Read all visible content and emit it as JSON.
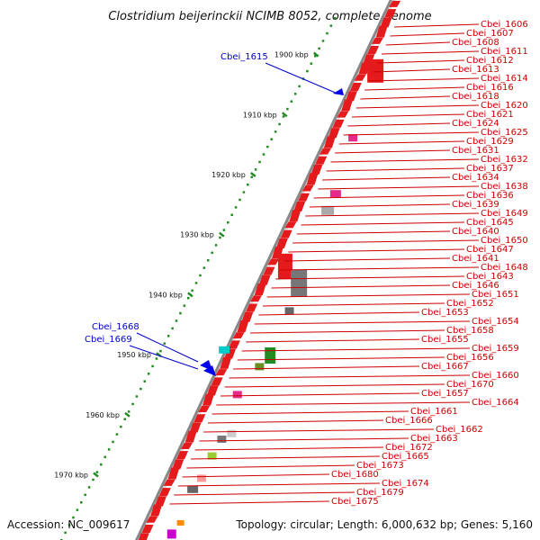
{
  "title": "Clostridium beijerinckii NCIMB 8052, complete genome",
  "footer": {
    "accession": "Accession: NC_009617",
    "topology": "Topology: circular; Length: 6,000,632 bp; Genes: 5,160"
  },
  "colors": {
    "forward_gene": "#e41a1c",
    "reverse_gene": "#0000ee",
    "ruler_major": "#228b22",
    "ruler_minor": "#228b22",
    "backbone": "#888888",
    "label_forward": "#cc0000",
    "label_reverse": "#0000cc"
  },
  "ruler_ticks": [
    {
      "label": "1900 kbp"
    },
    {
      "label": "1910 kbp"
    },
    {
      "label": "1920 kbp"
    },
    {
      "label": "1930 kbp"
    },
    {
      "label": "1940 kbp"
    },
    {
      "label": "1950 kbp"
    },
    {
      "label": "1960 kbp"
    },
    {
      "label": "1970 kbp"
    }
  ],
  "reverse_labels": [
    {
      "text": "Cbei_1615"
    },
    {
      "text": "Cbei_1668"
    },
    {
      "text": "Cbei_1669"
    }
  ],
  "forward_labels": [
    {
      "text": "Cbei_1606"
    },
    {
      "text": "Cbei_1607"
    },
    {
      "text": "Cbei_1608"
    },
    {
      "text": "Cbei_1611"
    },
    {
      "text": "Cbei_1612"
    },
    {
      "text": "Cbei_1613"
    },
    {
      "text": "Cbei_1614"
    },
    {
      "text": "Cbei_1616"
    },
    {
      "text": "Cbei_1618"
    },
    {
      "text": "Cbei_1620"
    },
    {
      "text": "Cbei_1621"
    },
    {
      "text": "Cbei_1624"
    },
    {
      "text": "Cbei_1625"
    },
    {
      "text": "Cbei_1629"
    },
    {
      "text": "Cbei_1631"
    },
    {
      "text": "Cbei_1632"
    },
    {
      "text": "Cbei_1637"
    },
    {
      "text": "Cbei_1634"
    },
    {
      "text": "Cbei_1638"
    },
    {
      "text": "Cbei_1636"
    },
    {
      "text": "Cbei_1639"
    },
    {
      "text": "Cbei_1649"
    },
    {
      "text": "Cbei_1645"
    },
    {
      "text": "Cbei_1640"
    },
    {
      "text": "Cbei_1650"
    },
    {
      "text": "Cbei_1647"
    },
    {
      "text": "Cbei_1641"
    },
    {
      "text": "Cbei_1648"
    },
    {
      "text": "Cbei_1643"
    },
    {
      "text": "Cbei_1646"
    },
    {
      "text": "Cbei_1651"
    },
    {
      "text": "Cbei_1652"
    },
    {
      "text": "Cbei_1653"
    },
    {
      "text": "Cbei_1654"
    },
    {
      "text": "Cbei_1658"
    },
    {
      "text": "Cbei_1655"
    },
    {
      "text": "Cbei_1659"
    },
    {
      "text": "Cbei_1656"
    },
    {
      "text": "Cbei_1667"
    },
    {
      "text": "Cbei_1660"
    },
    {
      "text": "Cbei_1670"
    },
    {
      "text": "Cbei_1657"
    },
    {
      "text": "Cbei_1664"
    },
    {
      "text": "Cbei_1661"
    },
    {
      "text": "Cbei_1666"
    },
    {
      "text": "Cbei_1662"
    },
    {
      "text": "Cbei_1663"
    },
    {
      "text": "Cbei_1672"
    },
    {
      "text": "Cbei_1665"
    },
    {
      "text": "Cbei_1673"
    },
    {
      "text": "Cbei_1680"
    },
    {
      "text": "Cbei_1674"
    },
    {
      "text": "Cbei_1679"
    },
    {
      "text": "Cbei_1675"
    }
  ]
}
